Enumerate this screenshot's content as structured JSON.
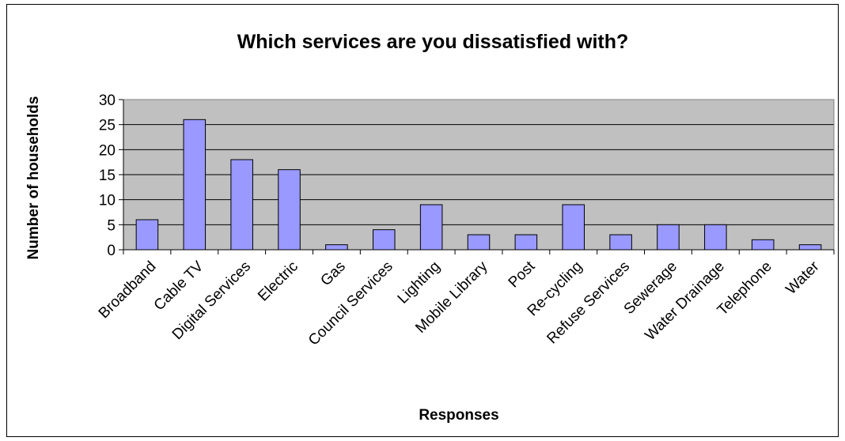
{
  "chart_data": {
    "type": "bar",
    "title": "Which services are you dissatisfied with?",
    "xlabel": "Responses",
    "ylabel": "Number of households",
    "ylim": [
      0,
      30
    ],
    "yticks": [
      0,
      5,
      10,
      15,
      20,
      25,
      30
    ],
    "grid": true,
    "legend": "none",
    "categories": [
      "Broadband",
      "Cable TV",
      "Digital Services",
      "Electric",
      "Gas",
      "Council Services",
      "Lighting",
      "Mobile Library",
      "Post",
      "Re-cycling",
      "Refuse Services",
      "Sewerage",
      "Water Drainage",
      "Telephone",
      "Water"
    ],
    "values": [
      6,
      26,
      18,
      16,
      1,
      4,
      9,
      3,
      3,
      9,
      3,
      5,
      5,
      2,
      1
    ],
    "colors": {
      "bar_fill": "#9999ff",
      "plot_bg": "#c0c0c0",
      "grid": "#000000"
    }
  }
}
